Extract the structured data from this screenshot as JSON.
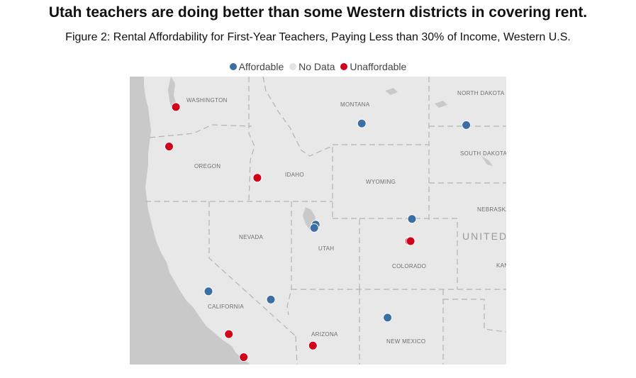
{
  "title": "Utah teachers are doing better than some Western districts in covering rent.",
  "subtitle": "Figure 2: Rental Affordability for First-Year Teachers, Paying Less than 30% of Income, Western U.S.",
  "legend": [
    {
      "label": "Affordable",
      "color": "#3a6ea5"
    },
    {
      "label": "No Data",
      "color": "#e3e3e3"
    },
    {
      "label": "Unaffordable",
      "color": "#d0021b"
    }
  ],
  "colors": {
    "land": "#e8e8e8",
    "ocean": "#c9c9c9",
    "border": "#b3b3b3",
    "affordable": "#3a6ea5",
    "unaffordable": "#d0021b"
  },
  "state_labels": {
    "washington": "WASHINGTON",
    "montana": "MONTANA",
    "north_dakota": "NORTH DAKOTA",
    "south_dakota": "SOUTH DAKOTA",
    "oregon": "OREGON",
    "idaho": "IDAHO",
    "wyoming": "WYOMING",
    "nebraska": "NEBRASKA",
    "nevada": "NEVADA",
    "utah": "UTAH",
    "colorado": "COLORADO",
    "kansas": "KAN",
    "california": "CALIFORNIA",
    "arizona": "ARIZONA",
    "new_mexico": "NEW MEXICO"
  },
  "country_label": "UNITED",
  "points": [
    {
      "status": "Unaffordable",
      "lat": 47.9,
      "lon": -122.2
    },
    {
      "status": "Unaffordable",
      "lat": 45.5,
      "lon": -122.7
    },
    {
      "status": "Unaffordable",
      "lat": 43.6,
      "lon": -116.2
    },
    {
      "status": "Affordable",
      "lat": 46.9,
      "lon": -108.5
    },
    {
      "status": "Affordable",
      "lat": 46.8,
      "lon": -100.8
    },
    {
      "status": "Affordable",
      "lat": 40.75,
      "lon": -111.9
    },
    {
      "status": "Affordable",
      "lat": 40.55,
      "lon": -112.0
    },
    {
      "status": "Affordable",
      "lat": 41.1,
      "lon": -104.8
    },
    {
      "status": "Unaffordable",
      "lat": 39.75,
      "lon": -105.0
    },
    {
      "status": "Unaffordable",
      "lat": 39.75,
      "lon": -104.9
    },
    {
      "status": "Affordable",
      "lat": 36.7,
      "lon": -119.8
    },
    {
      "status": "Affordable",
      "lat": 36.2,
      "lon": -115.2
    },
    {
      "status": "Affordable",
      "lat": 35.1,
      "lon": -106.6
    },
    {
      "status": "Unaffordable",
      "lat": 34.1,
      "lon": -118.3
    },
    {
      "status": "Unaffordable",
      "lat": 33.4,
      "lon": -112.1
    },
    {
      "status": "Unaffordable",
      "lat": 32.7,
      "lon": -117.2
    }
  ]
}
